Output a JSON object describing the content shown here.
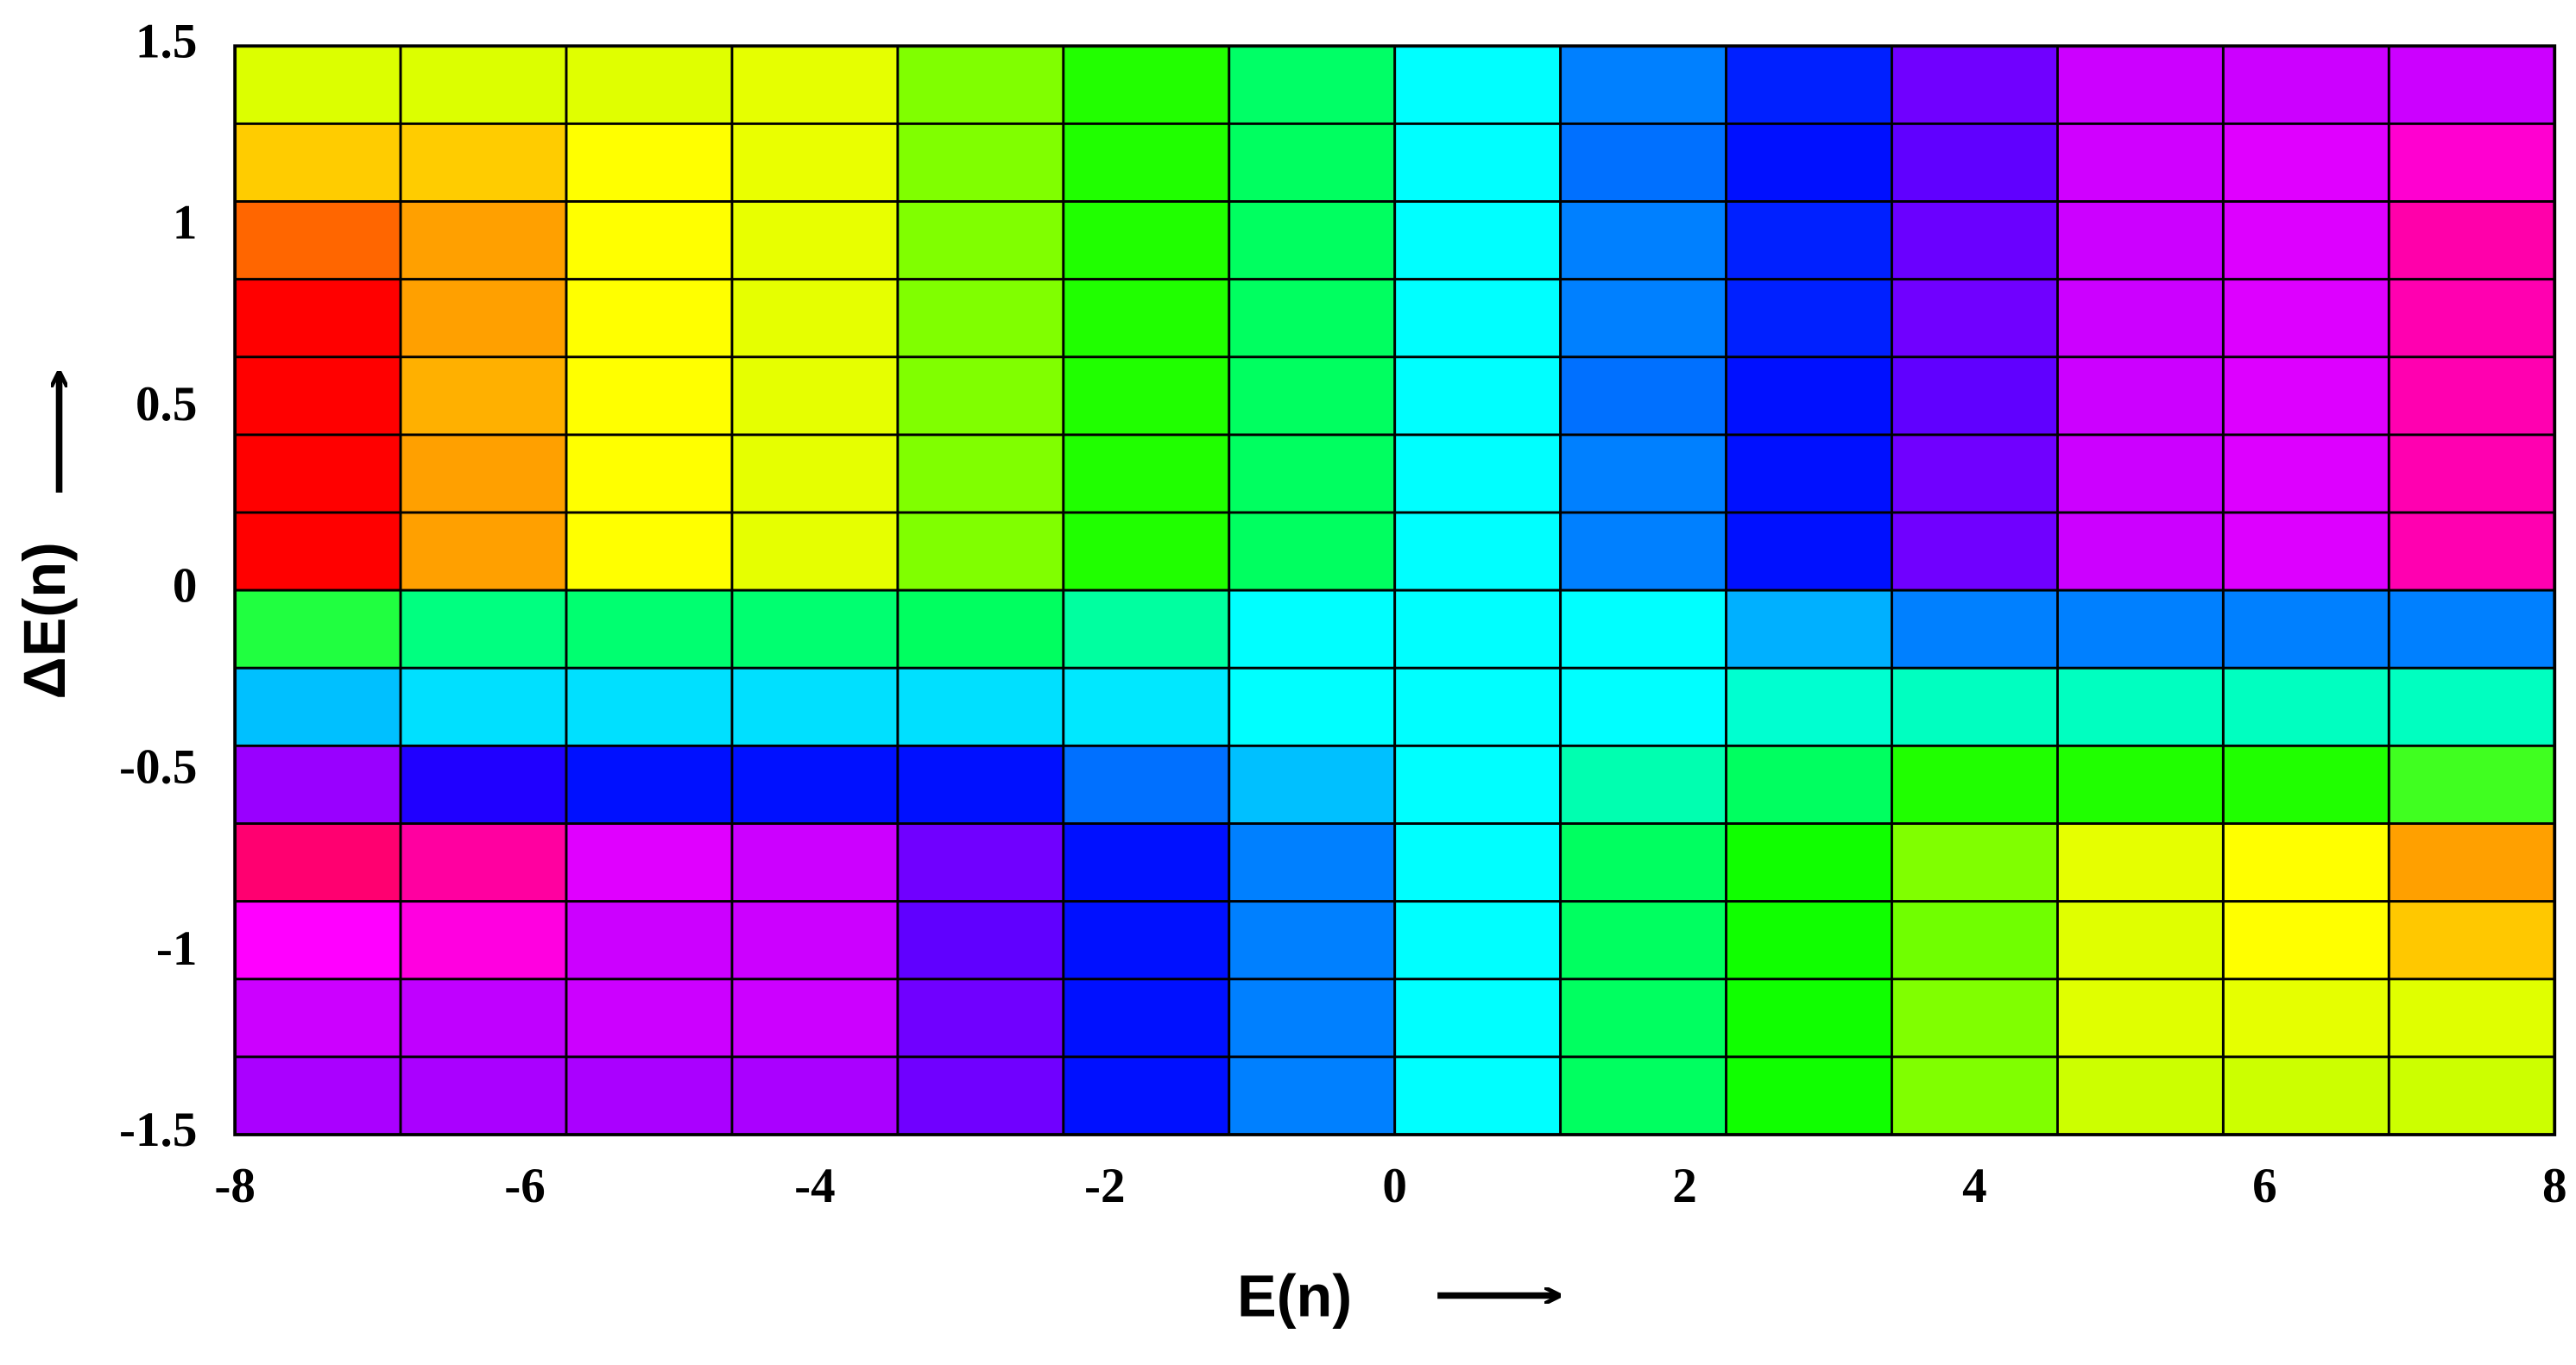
{
  "chart_data": {
    "type": "heatmap",
    "x_label": "E(n)",
    "y_label": "ΔE(n)",
    "xlim": [
      -8,
      8
    ],
    "xticks": [
      -8,
      -6,
      -4,
      -2,
      0,
      2,
      4,
      6,
      8
    ],
    "ylim": [
      -1.5,
      1.5
    ],
    "yticks": [
      -1.5,
      -1,
      -0.5,
      0,
      0.5,
      1,
      1.5
    ],
    "cell_colors": [
      [
        "#dcff00",
        "#dcff00",
        "#e0ff00",
        "#e6ff00",
        "#80ff00",
        "#22ff00",
        "#00ff66",
        "#00ffff",
        "#0080ff",
        "#0020ff",
        "#7000ff",
        "#cc00ff",
        "#cc00ff",
        "#cc00ff"
      ],
      [
        "#ffcc00",
        "#ffcc00",
        "#ffff00",
        "#eaff00",
        "#80ff00",
        "#20ff00",
        "#00ff60",
        "#00ffff",
        "#0070ff",
        "#0010ff",
        "#6000ff",
        "#d000ff",
        "#e000ff",
        "#ff00d0"
      ],
      [
        "#ff6600",
        "#ffa000",
        "#ffff00",
        "#e8ff00",
        "#80ff00",
        "#20ff00",
        "#00ff60",
        "#00ffff",
        "#0080ff",
        "#0020ff",
        "#6a00ff",
        "#cc00ff",
        "#dd00ff",
        "#ff00aa"
      ],
      [
        "#ff0000",
        "#ffa000",
        "#ffff00",
        "#e6ff00",
        "#80ff00",
        "#20ff00",
        "#00ff60",
        "#00ffff",
        "#0080ff",
        "#0020ff",
        "#7000ff",
        "#cc00ff",
        "#dd00ff",
        "#ff00b0"
      ],
      [
        "#ff0000",
        "#ffb000",
        "#ffff00",
        "#e6ff00",
        "#80ff00",
        "#20ff00",
        "#00ff60",
        "#00ffff",
        "#0070ff",
        "#0010ff",
        "#6000ff",
        "#cc00ff",
        "#dd00ff",
        "#ff00b0"
      ],
      [
        "#ff0000",
        "#ffa000",
        "#ffff00",
        "#e6ff00",
        "#80ff00",
        "#20ff00",
        "#00ff60",
        "#00ffff",
        "#0080ff",
        "#0010ff",
        "#7000ff",
        "#cc00ff",
        "#dd00ff",
        "#ff00b0"
      ],
      [
        "#ff0000",
        "#ffa000",
        "#ffff00",
        "#e6ff00",
        "#80ff00",
        "#20ff00",
        "#00ff60",
        "#00ffff",
        "#0080ff",
        "#0010ff",
        "#7000ff",
        "#cc00ff",
        "#dd00ff",
        "#ff00b0"
      ],
      [
        "#20ff40",
        "#00ff80",
        "#00ff70",
        "#00ff70",
        "#00ff60",
        "#00ffa0",
        "#00ffff",
        "#00ffff",
        "#00ffff",
        "#00b0ff",
        "#0080ff",
        "#0080ff",
        "#0080ff",
        "#0080ff"
      ],
      [
        "#00c0ff",
        "#00e0ff",
        "#00e0ff",
        "#00e0ff",
        "#00e0ff",
        "#00e8ff",
        "#00ffff",
        "#00ffff",
        "#00ffff",
        "#00ffd0",
        "#00ffc0",
        "#00ffc0",
        "#00ffc0",
        "#00ffc0"
      ],
      [
        "#9900ff",
        "#2000ff",
        "#0010ff",
        "#0010ff",
        "#0010ff",
        "#0070ff",
        "#00c0ff",
        "#00ffff",
        "#00ffb0",
        "#00ff60",
        "#20ff00",
        "#20ff00",
        "#20ff00",
        "#40ff20"
      ],
      [
        "#ff0070",
        "#ff00a0",
        "#e000ff",
        "#cc00ff",
        "#7000ff",
        "#0010ff",
        "#0080ff",
        "#00ffff",
        "#00ff60",
        "#10ff00",
        "#80ff00",
        "#e6ff00",
        "#ffff00",
        "#ffa000"
      ],
      [
        "#ff00ff",
        "#ff00e0",
        "#cc00ff",
        "#cc00ff",
        "#6000ff",
        "#0010ff",
        "#0080ff",
        "#00ffff",
        "#00ff60",
        "#10ff00",
        "#70ff00",
        "#e0ff00",
        "#ffff00",
        "#ffc800"
      ],
      [
        "#cc00ff",
        "#c000ff",
        "#cc00ff",
        "#cc00ff",
        "#7000ff",
        "#0010ff",
        "#0080ff",
        "#00ffff",
        "#00ff60",
        "#10ff00",
        "#80ff00",
        "#e0ff00",
        "#e6ff00",
        "#e0ff00"
      ],
      [
        "#aa00ff",
        "#aa00ff",
        "#aa00ff",
        "#aa00ff",
        "#7000ff",
        "#0010ff",
        "#0080ff",
        "#00ffff",
        "#00ff60",
        "#10ff00",
        "#80ff00",
        "#ccff00",
        "#ccff00",
        "#ccff00"
      ]
    ]
  }
}
